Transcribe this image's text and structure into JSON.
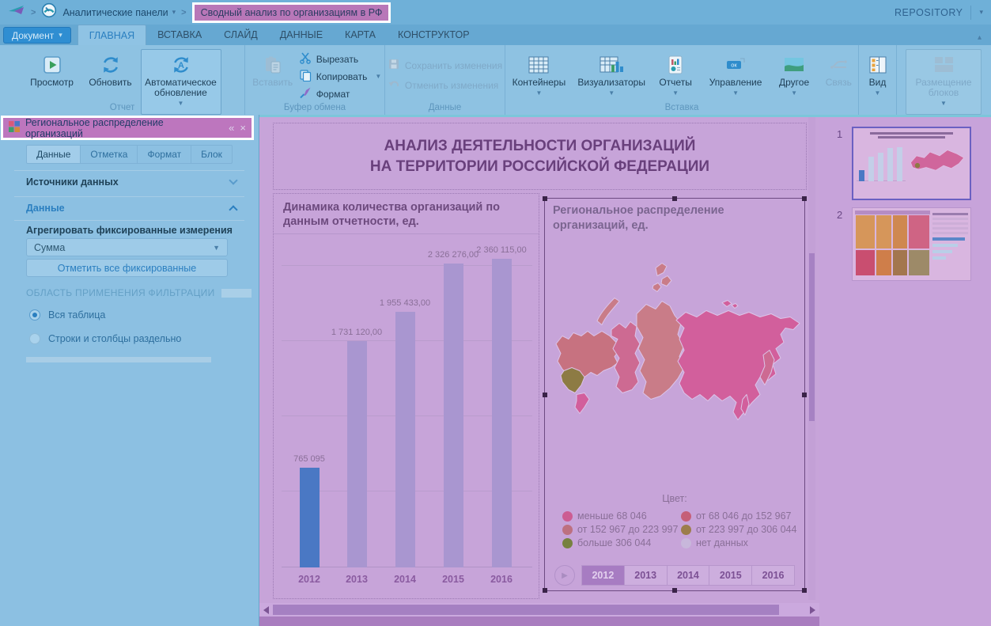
{
  "topbar": {
    "breadcrumb_root": "Аналитические панели",
    "breadcrumb_current": "Сводный анализ по организациям в РФ",
    "repository_label": "REPOSITORY"
  },
  "ribbon": {
    "document_button": "Документ",
    "tabs": [
      "ГЛАВНАЯ",
      "ВСТАВКА",
      "СЛАЙД",
      "ДАННЫЕ",
      "КАРТА",
      "КОНСТРУКТОР"
    ],
    "active_tab": "ГЛАВНАЯ",
    "preview": "Просмотр",
    "refresh": "Обновить",
    "auto_refresh": "Автоматическое обновление",
    "paste": "Вставить",
    "cut": "Вырезать",
    "copy": "Копировать",
    "format": "Формат",
    "save_changes": "Сохранить изменения",
    "undo_changes": "Отменить изменения",
    "containers": "Контейнеры",
    "visualizers": "Визуализаторы",
    "reports": "Отчеты",
    "management": "Управление",
    "other": "Другое",
    "link": "Связь",
    "view": "Вид",
    "block_layout": "Размещение блоков",
    "icon_ok_text": "ок",
    "groups": {
      "report": "Отчет",
      "clipboard": "Буфер обмена",
      "data": "Данные",
      "insert": "Вставка"
    }
  },
  "left_panel": {
    "title": "Региональное распределение организаций",
    "collapse_glyph": "«",
    "close_glyph": "×",
    "tabs": [
      "Данные",
      "Отметка",
      "Формат",
      "Блок"
    ],
    "active_tab": "Данные",
    "sources_section": "Источники данных",
    "data_section": "Данные",
    "aggregate_label": "Агрегировать фиксированные измерения",
    "aggregate_value": "Сумма",
    "mark_all_button": "Отметить все фиксированные",
    "filter_area_caption": "ОБЛАСТЬ ПРИМЕНЕНИЯ ФИЛЬТРАЦИИ",
    "radio_whole_table": "Вся таблица",
    "radio_rows_cols": "Строки и столбцы раздельно",
    "selected_radio": "Вся таблица"
  },
  "slide": {
    "title_line1": "АНАЛИЗ ДЕЯТЕЛЬНОСТИ ОРГАНИЗАЦИЙ",
    "title_line2": "НА ТЕРРИТОРИИ РОССИЙСКОЙ ФЕДЕРАЦИИ"
  },
  "chart_data": [
    {
      "type": "bar",
      "title": "Динамика количества организаций по данным отчетности, ед.",
      "categories": [
        "2012",
        "2013",
        "2014",
        "2015",
        "2016"
      ],
      "values": [
        765095,
        1731120,
        1955433,
        2326276,
        2360115
      ],
      "value_labels": [
        "765 095",
        "1 731 120,00",
        "1 955 433,00",
        "2 326 276,00",
        "2 360 115,00"
      ],
      "ylim": [
        0,
        2530000
      ],
      "grid": true,
      "legend_position": "none",
      "bar_color_default": "#a996d0",
      "bar_color_selected": "#4a78c4",
      "selected_category": "2012"
    },
    {
      "type": "heatmap",
      "subtype": "choropleth-map-of-russia",
      "title": "Региональное распределение организаций, ед.",
      "legend_title": "Цвет:",
      "legend": [
        {
          "label": "меньше 68 046",
          "color": "#cc5c92"
        },
        {
          "label": "от 68 046 до 152 967",
          "color": "#c55f78"
        },
        {
          "label": "от 152 967 до 223 997",
          "color": "#bd7080"
        },
        {
          "label": "от 223 997 до 306 044",
          "color": "#9c7d4c"
        },
        {
          "label": "больше 306 044",
          "color": "#778140"
        },
        {
          "label": "нет данных",
          "color": "#c8b7db"
        }
      ],
      "years": [
        "2012",
        "2013",
        "2014",
        "2015",
        "2016"
      ],
      "selected_year": "2012"
    }
  ],
  "map_palette": {
    "bright": "#d25f9c",
    "pink2": "#cd6a92",
    "dusty": "#c77280",
    "dusty2": "#c97c88",
    "olive": "#8d7b44"
  },
  "thumbnails": {
    "slide1_number": "1",
    "slide2_number": "2",
    "slide2_treemap": [
      "#d6965a",
      "#d6965a",
      "#cf8850",
      "#cf6484",
      "#c94e70",
      "#cf7e4a",
      "#a3764e",
      "#9d8a68"
    ]
  }
}
